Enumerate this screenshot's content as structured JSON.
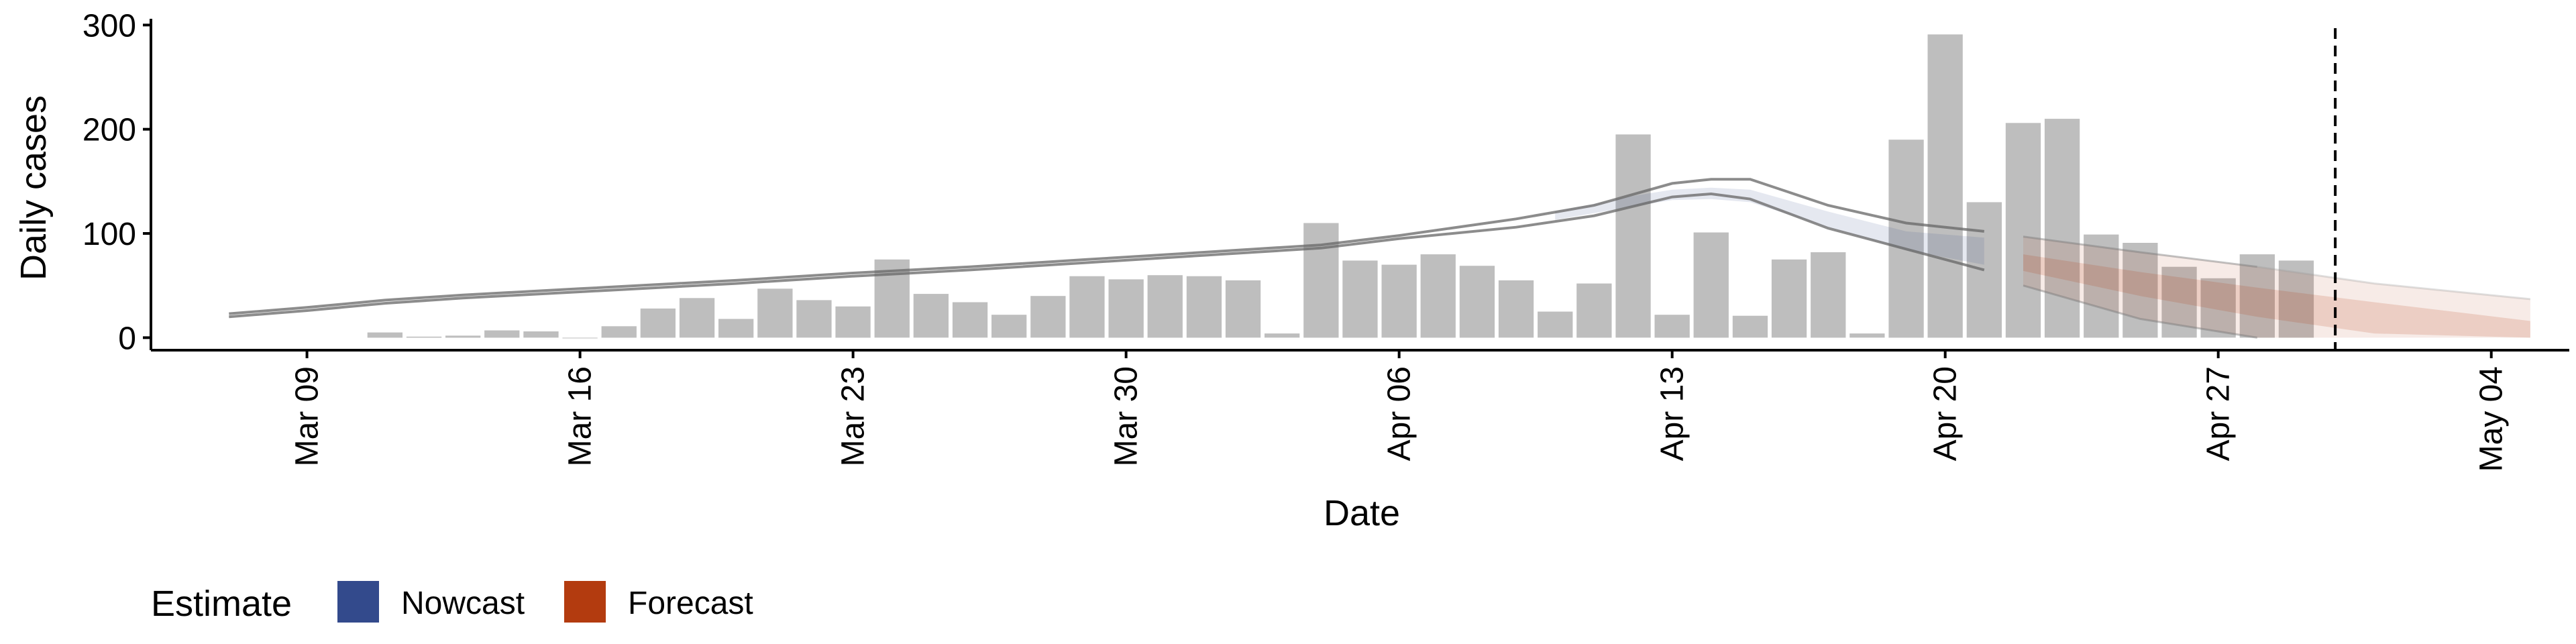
{
  "chart_data": {
    "type": "bar",
    "xlabel": "Date",
    "ylabel": "Daily cases",
    "x_range": [
      "2020-03-05",
      "2020-05-06"
    ],
    "ylim": [
      -12,
      306
    ],
    "y_ticks": [
      0,
      100,
      200,
      300
    ],
    "x_ticks": [
      {
        "date": "2020-03-09",
        "label": "Mar 09"
      },
      {
        "date": "2020-03-16",
        "label": "Mar 16"
      },
      {
        "date": "2020-03-23",
        "label": "Mar 23"
      },
      {
        "date": "2020-03-30",
        "label": "Mar 30"
      },
      {
        "date": "2020-04-06",
        "label": "Apr 06"
      },
      {
        "date": "2020-04-13",
        "label": "Apr 13"
      },
      {
        "date": "2020-04-20",
        "label": "Apr 20"
      },
      {
        "date": "2020-04-27",
        "label": "Apr 27"
      },
      {
        "date": "2020-05-04",
        "label": "May 04"
      }
    ],
    "bars": {
      "start_date": "2020-03-11",
      "color": "#bebebe",
      "values": [
        5,
        1,
        2,
        7,
        6,
        0,
        11,
        28,
        38,
        18,
        47,
        36,
        30,
        75,
        42,
        34,
        22,
        40,
        59,
        56,
        60,
        59,
        55,
        4,
        110,
        74,
        70,
        80,
        69,
        55,
        25,
        52,
        195,
        22,
        101,
        21,
        75,
        82,
        4,
        190,
        291,
        130,
        206,
        210,
        99,
        91,
        68,
        57,
        80,
        74
      ]
    },
    "estimate_line": {
      "color": "#666666",
      "x": [
        "2020-03-07",
        "2020-03-08",
        "2020-03-09",
        "2020-03-11",
        "2020-03-13",
        "2020-03-16",
        "2020-03-20",
        "2020-03-23",
        "2020-03-26",
        "2020-03-29",
        "2020-04-01",
        "2020-04-04",
        "2020-04-06",
        "2020-04-09",
        "2020-04-11",
        "2020-04-13",
        "2020-04-14",
        "2020-04-15",
        "2020-04-17",
        "2020-04-19",
        "2020-04-21"
      ],
      "upper": [
        23,
        26,
        29,
        36,
        41,
        47,
        55,
        62,
        68,
        75,
        82,
        89,
        98,
        114,
        127,
        148,
        152,
        152,
        127,
        110,
        102
      ],
      "lower": [
        20,
        23,
        26,
        33,
        38,
        44,
        52,
        59,
        65,
        72,
        79,
        86,
        95,
        106,
        117,
        135,
        138,
        133,
        105,
        85,
        65
      ]
    },
    "series": [
      {
        "name": "Nowcast",
        "color": "#334a8c",
        "x": [
          "2020-04-10",
          "2020-04-12",
          "2020-04-13",
          "2020-04-14",
          "2020-04-15",
          "2020-04-17",
          "2020-04-19",
          "2020-04-21"
        ],
        "upper": [
          121,
          136,
          142,
          144,
          142,
          121,
          102,
          96
        ],
        "lower": [
          113,
          126,
          132,
          133,
          130,
          106,
          84,
          70
        ]
      },
      {
        "name": "Forecast",
        "color": "#b33b0f",
        "x": [
          "2020-04-22",
          "2020-04-25",
          "2020-04-28",
          "2020-05-01",
          "2020-05-05"
        ],
        "outer_upper": [
          97,
          82,
          68,
          52,
          37
        ],
        "outer_lower": [
          50,
          18,
          0,
          0,
          0
        ],
        "inner_upper": [
          80,
          63,
          48,
          34,
          16
        ],
        "inner_lower": [
          64,
          40,
          20,
          4,
          0
        ]
      }
    ],
    "vline": {
      "date": "2020-04-30",
      "style": "dashed"
    },
    "legend": {
      "title": "Estimate",
      "position": "bottom-left",
      "items": [
        "Nowcast",
        "Forecast"
      ]
    }
  }
}
